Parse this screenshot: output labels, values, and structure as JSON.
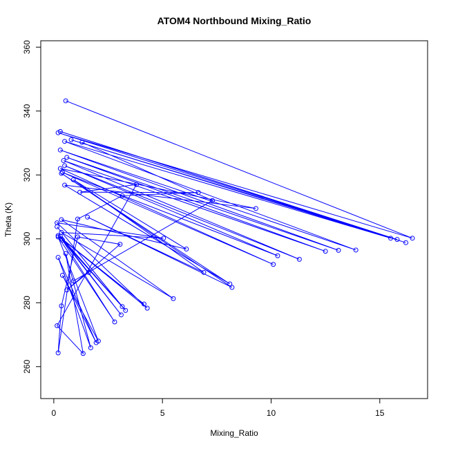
{
  "chart_data": {
    "type": "line",
    "title": "ATOM4 Northbound Mixing_Ratio",
    "xlabel": "Mixing_Ratio",
    "ylabel": "Theta (K)",
    "xlim": [
      -0.6,
      17.2
    ],
    "ylim": [
      250,
      362
    ],
    "x_ticks": [
      0,
      5,
      10,
      15
    ],
    "y_ticks": [
      260,
      280,
      300,
      320,
      340,
      360
    ],
    "grid": false,
    "legend": "none",
    "colors": {
      "series": "#0000ff",
      "axis": "#000000",
      "background": "#ffffff"
    },
    "series": [
      {
        "marker": "open-circle",
        "points": [
          [
            0.55,
            343.2
          ],
          [
            16.5,
            300.2
          ],
          [
            0.2,
            333.2
          ],
          [
            16.2,
            298.8
          ],
          [
            0.3,
            333.6
          ],
          [
            15.8,
            299.8
          ],
          [
            0.8,
            331.0
          ],
          [
            15.5,
            300.2
          ],
          [
            0.5,
            330.5
          ],
          [
            13.9,
            296.5
          ],
          [
            0.3,
            327.8
          ],
          [
            13.1,
            296.4
          ],
          [
            0.6,
            325.5
          ],
          [
            12.5,
            296.1
          ],
          [
            0.45,
            324.5
          ],
          [
            11.3,
            293.6
          ],
          [
            0.5,
            322.9
          ],
          [
            10.3,
            294.7
          ],
          [
            0.4,
            320.8
          ],
          [
            10.1,
            292.0
          ],
          [
            0.3,
            322.0
          ],
          [
            9.3,
            309.5
          ],
          [
            0.5,
            316.8
          ],
          [
            8.1,
            285.9
          ],
          [
            0.35,
            320.5
          ],
          [
            8.2,
            284.8
          ],
          [
            1.55,
            306.8
          ],
          [
            6.9,
            289.5
          ],
          [
            0.9,
            318.5
          ],
          [
            6.1,
            296.8
          ],
          [
            0.35,
            306.0
          ],
          [
            5.5,
            281.3
          ],
          [
            0.35,
            302.0
          ],
          [
            5.05,
            300.2
          ],
          [
            0.15,
            305.0
          ],
          [
            4.3,
            278.3
          ],
          [
            0.2,
            301.0
          ],
          [
            4.15,
            279.6
          ],
          [
            0.35,
            300.0
          ],
          [
            3.3,
            277.6
          ],
          [
            0.15,
            303.8
          ],
          [
            3.15,
            278.8
          ],
          [
            0.3,
            300.8
          ],
          [
            3.1,
            276.2
          ],
          [
            0.4,
            299.6
          ],
          [
            2.8,
            274.0
          ],
          [
            0.2,
            300.6
          ],
          [
            2.05,
            268.0
          ],
          [
            0.4,
            288.6
          ],
          [
            1.95,
            267.5
          ],
          [
            0.2,
            294.2
          ],
          [
            1.7,
            265.9
          ],
          [
            0.55,
            295.4
          ],
          [
            1.35,
            264.1
          ],
          [
            0.15,
            272.8
          ],
          [
            3.8,
            317.0
          ],
          [
            1.2,
            314.6
          ],
          [
            6.65,
            314.5
          ],
          [
            3.15,
            313.5
          ],
          [
            1.1,
            306.2
          ],
          [
            0.2,
            264.3
          ],
          [
            0.35,
            279.0
          ],
          [
            1.1,
            300.6
          ],
          [
            3.05,
            298.3
          ],
          [
            0.6,
            284.0
          ],
          [
            1.6,
            289.5
          ],
          [
            0.9,
            286.8
          ],
          [
            7.3,
            312.0
          ],
          [
            1.3,
            330.2
          ]
        ]
      }
    ]
  }
}
